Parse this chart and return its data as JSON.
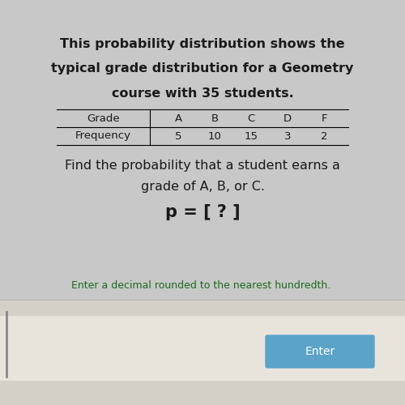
{
  "title_line1": "This probability distribution shows the",
  "title_line2": "typical grade distribution for a Geometry",
  "title_line3": "course with 35 students.",
  "grade_label": "Grade",
  "frequency_label": "Frequency",
  "grades": [
    "A",
    "B",
    "C",
    "D",
    "F"
  ],
  "frequencies": [
    5,
    10,
    15,
    3,
    2
  ],
  "question_line1": "Find the probability that a student earns a",
  "question_line2": "grade of A, B, or C.",
  "p_text": "p = [ ? ]",
  "hint_text": "Enter a decimal rounded to the nearest hundredth.",
  "enter_button_text": "Enter",
  "upper_bg_color": "#c8c8c8",
  "lower_bg_color": "#d4d0c8",
  "input_area_color": "#e8e4dc",
  "title_fontsize": 11.5,
  "question_fontsize": 11.5,
  "p_fontsize": 15,
  "hint_color": "#1a6b1a",
  "enter_btn_color": "#5ba3c9",
  "enter_btn_text_color": "#ffffff",
  "table_fontsize": 9.5,
  "text_color": "#1a1a1a"
}
